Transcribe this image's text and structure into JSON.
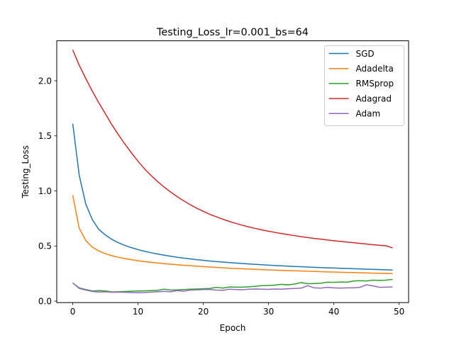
{
  "chart_data": {
    "type": "line",
    "title": "Testing_Loss_lr=0.001_bs=64",
    "xlabel": "Epoch",
    "ylabel": "Testing_Loss",
    "xlim": [
      -2.45,
      51.45
    ],
    "ylim": [
      -0.0136,
      2.3626
    ],
    "xticks": [
      0,
      10,
      20,
      30,
      40,
      50
    ],
    "yticks": [
      0.0,
      0.5,
      1.0,
      1.5,
      2.0
    ],
    "xtick_labels": [
      "0",
      "10",
      "20",
      "30",
      "40",
      "50"
    ],
    "ytick_labels": [
      "0.0",
      "0.5",
      "1.0",
      "1.5",
      "2.0"
    ],
    "grid": false,
    "legend_position": "top-right",
    "x": [
      0,
      1,
      2,
      3,
      4,
      5,
      6,
      7,
      8,
      9,
      10,
      11,
      12,
      13,
      14,
      15,
      16,
      17,
      18,
      19,
      20,
      21,
      22,
      23,
      24,
      25,
      26,
      27,
      28,
      29,
      30,
      31,
      32,
      33,
      34,
      35,
      36,
      37,
      38,
      39,
      40,
      41,
      42,
      43,
      44,
      45,
      46,
      47,
      48,
      49
    ],
    "series": [
      {
        "name": "SGD",
        "color": "#1f77b4",
        "values": [
          1.61,
          1.14,
          0.88,
          0.74,
          0.65,
          0.6,
          0.56,
          0.53,
          0.505,
          0.485,
          0.467,
          0.452,
          0.439,
          0.427,
          0.417,
          0.407,
          0.398,
          0.39,
          0.383,
          0.376,
          0.37,
          0.364,
          0.359,
          0.354,
          0.349,
          0.345,
          0.341,
          0.337,
          0.333,
          0.33,
          0.326,
          0.323,
          0.32,
          0.317,
          0.314,
          0.312,
          0.309,
          0.307,
          0.304,
          0.302,
          0.3,
          0.298,
          0.296,
          0.294,
          0.292,
          0.29,
          0.288,
          0.286,
          0.284,
          0.282
        ]
      },
      {
        "name": "Adadelta",
        "color": "#ff7f0e",
        "values": [
          0.96,
          0.66,
          0.55,
          0.49,
          0.455,
          0.43,
          0.412,
          0.398,
          0.386,
          0.376,
          0.367,
          0.359,
          0.352,
          0.346,
          0.34,
          0.335,
          0.33,
          0.325,
          0.321,
          0.317,
          0.313,
          0.309,
          0.306,
          0.302,
          0.299,
          0.296,
          0.293,
          0.291,
          0.288,
          0.286,
          0.283,
          0.281,
          0.279,
          0.277,
          0.275,
          0.273,
          0.271,
          0.269,
          0.267,
          0.265,
          0.264,
          0.262,
          0.26,
          0.259,
          0.257,
          0.256,
          0.254,
          0.253,
          0.251,
          0.25
        ]
      },
      {
        "name": "RMSprop",
        "color": "#2ca02c",
        "values": [
          0.165,
          0.12,
          0.105,
          0.092,
          0.095,
          0.092,
          0.083,
          0.085,
          0.087,
          0.09,
          0.092,
          0.093,
          0.095,
          0.098,
          0.108,
          0.1,
          0.102,
          0.105,
          0.108,
          0.11,
          0.112,
          0.115,
          0.125,
          0.118,
          0.128,
          0.127,
          0.127,
          0.13,
          0.135,
          0.14,
          0.142,
          0.145,
          0.152,
          0.148,
          0.155,
          0.168,
          0.158,
          0.16,
          0.162,
          0.172,
          0.17,
          0.173,
          0.172,
          0.182,
          0.185,
          0.183,
          0.19,
          0.188,
          0.19,
          0.197
        ]
      },
      {
        "name": "Adagrad",
        "color": "#d62728",
        "values": [
          2.28,
          2.14,
          2.02,
          1.905,
          1.8,
          1.7,
          1.6,
          1.51,
          1.425,
          1.345,
          1.27,
          1.2,
          1.14,
          1.085,
          1.035,
          0.99,
          0.948,
          0.91,
          0.875,
          0.843,
          0.815,
          0.788,
          0.765,
          0.743,
          0.723,
          0.705,
          0.688,
          0.673,
          0.659,
          0.646,
          0.634,
          0.623,
          0.613,
          0.603,
          0.594,
          0.585,
          0.577,
          0.569,
          0.562,
          0.555,
          0.548,
          0.542,
          0.536,
          0.53,
          0.524,
          0.518,
          0.512,
          0.507,
          0.502,
          0.483
        ]
      },
      {
        "name": "Adam",
        "color": "#9467bd",
        "values": [
          0.165,
          0.115,
          0.1,
          0.088,
          0.082,
          0.085,
          0.08,
          0.082,
          0.08,
          0.078,
          0.076,
          0.078,
          0.082,
          0.085,
          0.088,
          0.085,
          0.095,
          0.09,
          0.1,
          0.102,
          0.105,
          0.105,
          0.1,
          0.098,
          0.108,
          0.105,
          0.103,
          0.108,
          0.11,
          0.108,
          0.107,
          0.11,
          0.108,
          0.112,
          0.115,
          0.118,
          0.14,
          0.12,
          0.118,
          0.125,
          0.12,
          0.118,
          0.12,
          0.12,
          0.125,
          0.148,
          0.138,
          0.125,
          0.127,
          0.128
        ]
      }
    ]
  }
}
